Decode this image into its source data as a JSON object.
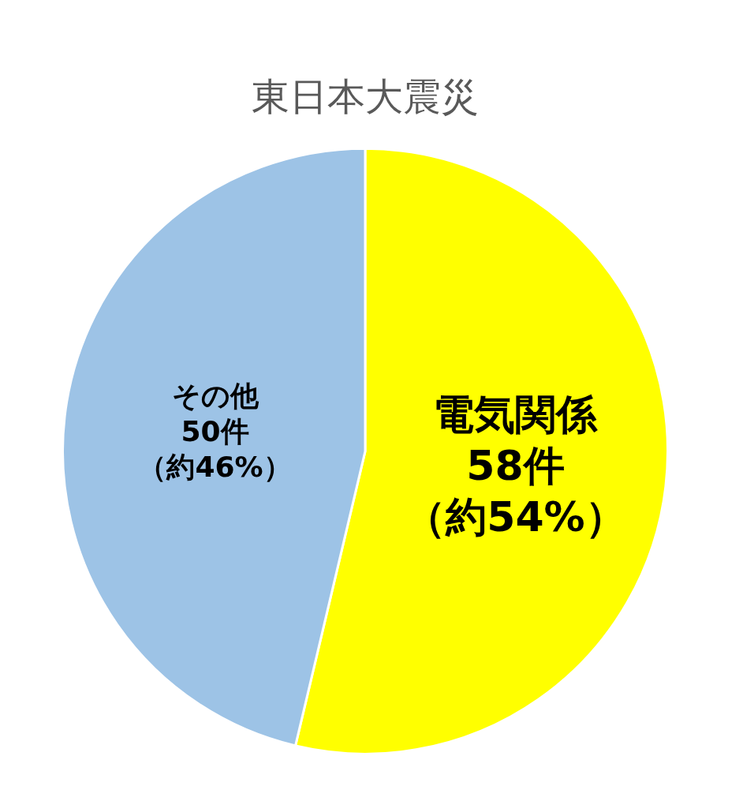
{
  "chart_data": {
    "type": "pie",
    "title": "東日本大震災",
    "categories": [
      "電気関係",
      "その他"
    ],
    "values": [
      58,
      50
    ],
    "value_labels": [
      "58件（約54%）",
      "50件（約46%）"
    ],
    "colors": [
      "#ffff00",
      "#9dc3e6"
    ],
    "legend": false
  }
}
